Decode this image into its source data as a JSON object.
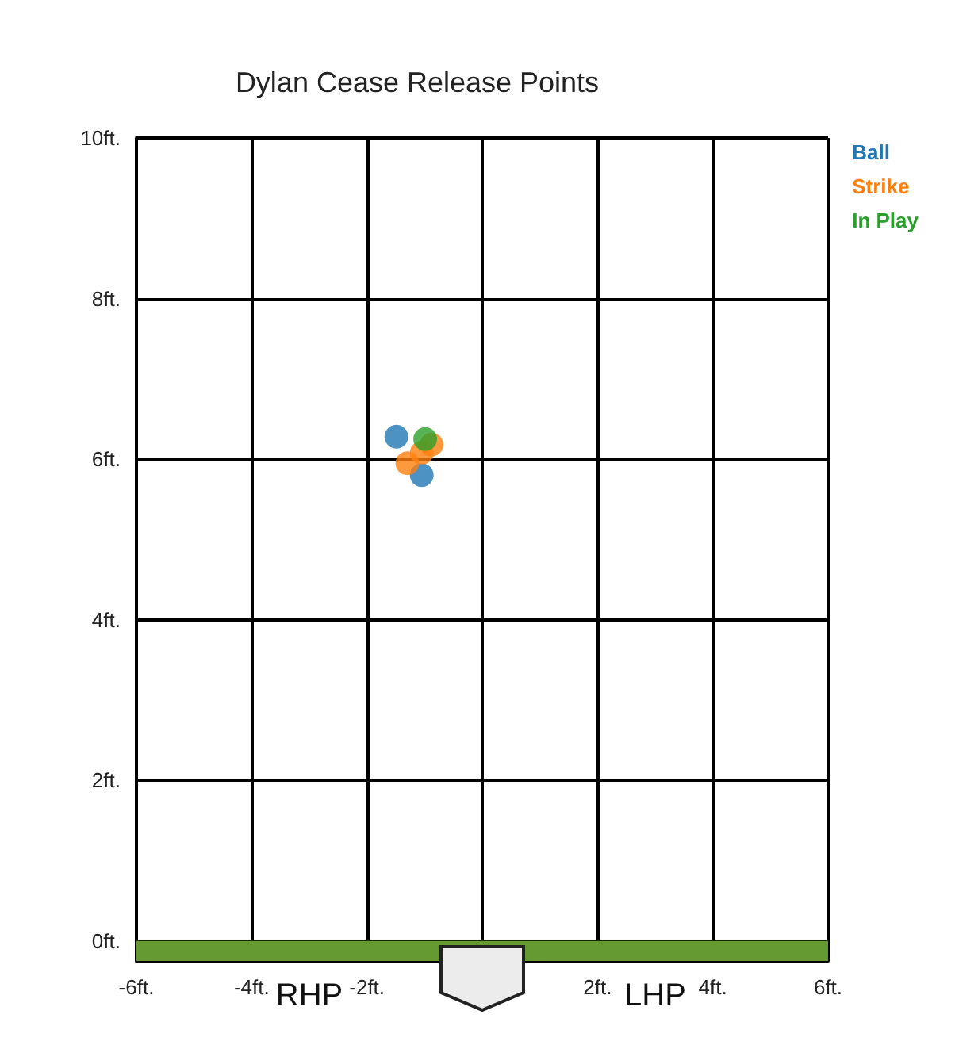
{
  "chart_data": {
    "type": "scatter",
    "title": "Dylan Cease Release Points",
    "series": [
      {
        "name": "Ball",
        "color": "#1f77b4",
        "x": [
          -1.49,
          -1.05
        ],
        "values": [
          6.28,
          5.8
        ]
      },
      {
        "name": "Strike",
        "color": "#ff7f0e",
        "x": [
          -1.3,
          -1.05,
          -0.88
        ],
        "values": [
          5.95,
          6.08,
          6.18
        ]
      },
      {
        "name": "In Play",
        "color": "#2ca02c",
        "x": [
          -0.99
        ],
        "values": [
          6.25
        ]
      }
    ],
    "xlim": [
      -6,
      6
    ],
    "xticks": [
      {
        "value": -6,
        "label": "-6ft."
      },
      {
        "value": -4,
        "label": "-4ft."
      },
      {
        "value": -2,
        "label": "-2ft."
      },
      {
        "value": 0,
        "label": null
      },
      {
        "value": 2,
        "label": "2ft."
      },
      {
        "value": 4,
        "label": "4ft."
      },
      {
        "value": 6,
        "label": "6ft."
      }
    ],
    "ylim": [
      -0.25,
      10
    ],
    "yticks": [
      {
        "value": 0,
        "label": "0ft."
      },
      {
        "value": 2,
        "label": "2ft."
      },
      {
        "value": 4,
        "label": "4ft."
      },
      {
        "value": 6,
        "label": "6ft."
      },
      {
        "value": 8,
        "label": "8ft."
      },
      {
        "value": 10,
        "label": "10ft."
      }
    ],
    "bands": [
      {
        "axis": "y",
        "from": -0.25,
        "to": 0,
        "label": null,
        "color": "#659a33"
      }
    ],
    "annotations": [
      "RHP",
      "LHP"
    ],
    "grid": true,
    "legend": "top right",
    "marker": "circle"
  }
}
